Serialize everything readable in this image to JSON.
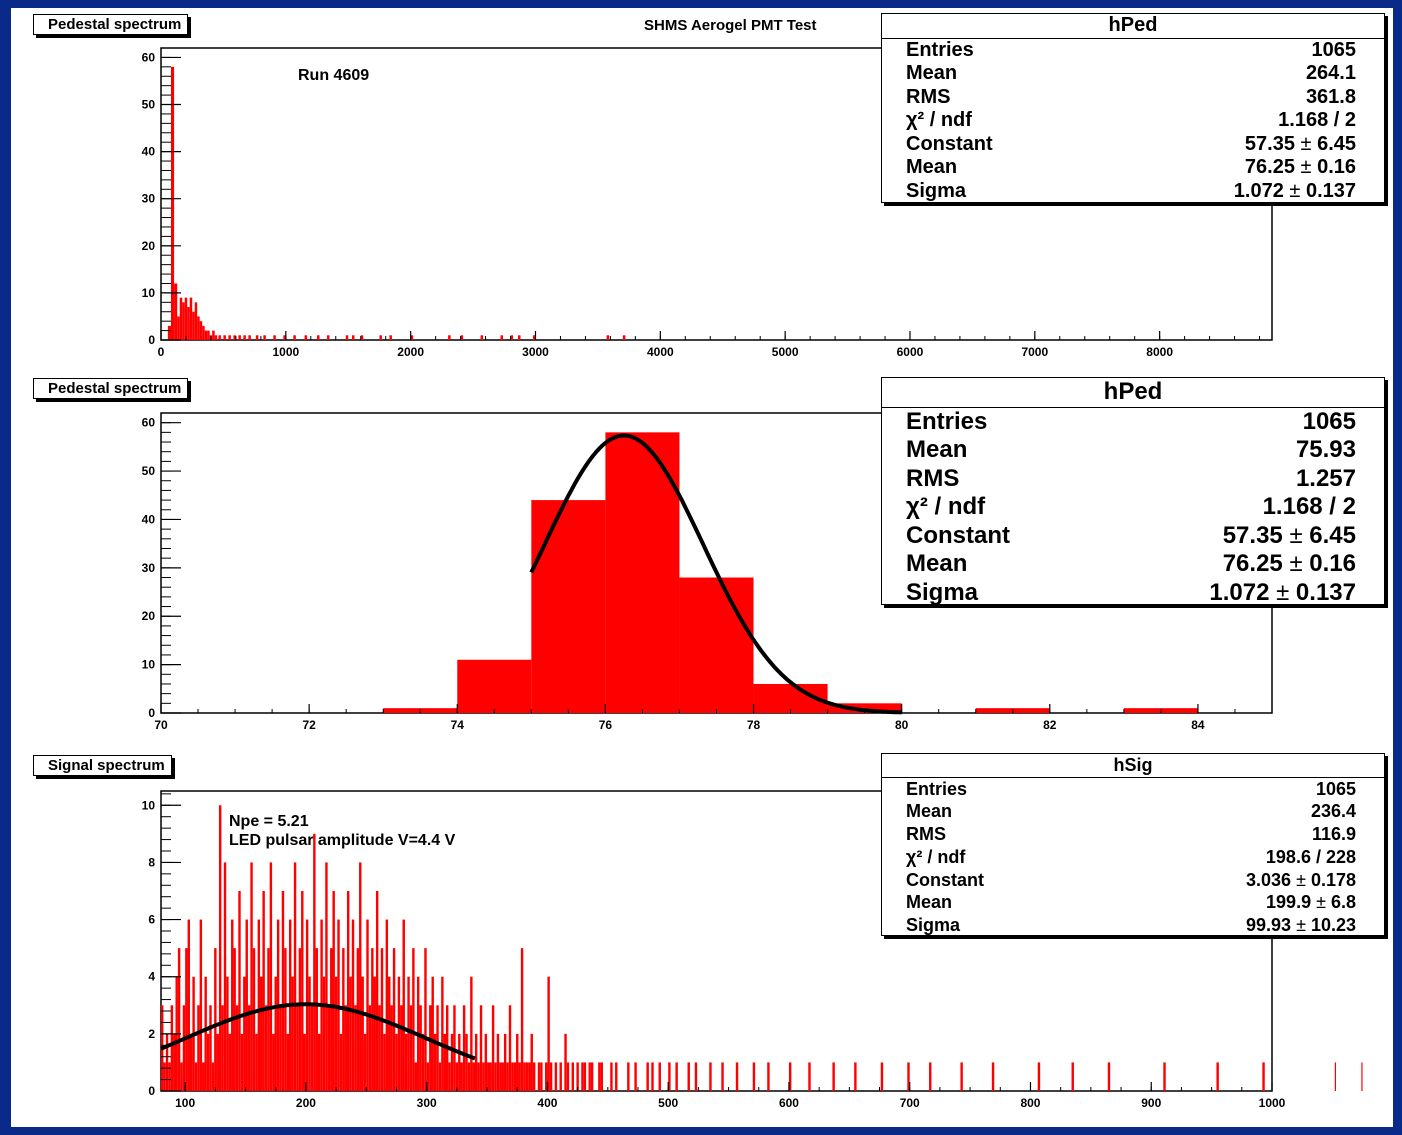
{
  "canvas": {
    "title": "SHMS Aerogel PMT Test"
  },
  "colors": {
    "background": "#0a2a8a",
    "histogram": "#ff0000",
    "fit": "#000000",
    "pad": "#ffffff"
  },
  "chart_data": [
    {
      "type": "bar",
      "name": "hPed",
      "title": "Pedestal spectrum",
      "annotation": "Run  4609",
      "xlim": [
        0,
        8900
      ],
      "ylim": [
        0,
        62
      ],
      "xticks": [
        0,
        1000,
        2000,
        3000,
        4000,
        5000,
        6000,
        7000,
        8000
      ],
      "yticks": [
        0,
        10,
        20,
        30,
        40,
        50,
        60
      ],
      "bins": [
        {
          "x": 55,
          "w": 25,
          "y": 3
        },
        {
          "x": 80,
          "w": 25,
          "y": 58
        },
        {
          "x": 105,
          "w": 25,
          "y": 12
        },
        {
          "x": 130,
          "w": 20,
          "y": 5
        },
        {
          "x": 150,
          "w": 20,
          "y": 9
        },
        {
          "x": 170,
          "w": 20,
          "y": 8
        },
        {
          "x": 190,
          "w": 20,
          "y": 9
        },
        {
          "x": 210,
          "w": 20,
          "y": 7
        },
        {
          "x": 230,
          "w": 20,
          "y": 9
        },
        {
          "x": 250,
          "w": 20,
          "y": 6
        },
        {
          "x": 270,
          "w": 20,
          "y": 8
        },
        {
          "x": 290,
          "w": 20,
          "y": 5
        },
        {
          "x": 310,
          "w": 20,
          "y": 4
        },
        {
          "x": 330,
          "w": 20,
          "y": 3
        },
        {
          "x": 350,
          "w": 20,
          "y": 2
        },
        {
          "x": 370,
          "w": 20,
          "y": 2
        },
        {
          "x": 390,
          "w": 20,
          "y": 1
        },
        {
          "x": 410,
          "w": 20,
          "y": 2
        },
        {
          "x": 430,
          "w": 20,
          "y": 1
        },
        {
          "x": 460,
          "w": 20,
          "y": 1
        },
        {
          "x": 500,
          "w": 20,
          "y": 1
        },
        {
          "x": 540,
          "w": 20,
          "y": 1
        },
        {
          "x": 580,
          "w": 20,
          "y": 1
        },
        {
          "x": 620,
          "w": 20,
          "y": 1
        },
        {
          "x": 660,
          "w": 20,
          "y": 1
        },
        {
          "x": 700,
          "w": 20,
          "y": 1
        },
        {
          "x": 760,
          "w": 20,
          "y": 1
        },
        {
          "x": 820,
          "w": 20,
          "y": 1
        },
        {
          "x": 900,
          "w": 20,
          "y": 1
        },
        {
          "x": 980,
          "w": 20,
          "y": 1
        },
        {
          "x": 1060,
          "w": 20,
          "y": 1
        },
        {
          "x": 1150,
          "w": 20,
          "y": 1
        },
        {
          "x": 1250,
          "w": 20,
          "y": 1
        },
        {
          "x": 1330,
          "w": 20,
          "y": 1
        },
        {
          "x": 1480,
          "w": 20,
          "y": 1
        },
        {
          "x": 1530,
          "w": 20,
          "y": 1
        },
        {
          "x": 1600,
          "w": 20,
          "y": 1
        },
        {
          "x": 1750,
          "w": 20,
          "y": 1
        },
        {
          "x": 1830,
          "w": 20,
          "y": 1
        },
        {
          "x": 2000,
          "w": 20,
          "y": 1
        },
        {
          "x": 2300,
          "w": 20,
          "y": 1
        },
        {
          "x": 2400,
          "w": 20,
          "y": 1
        },
        {
          "x": 2560,
          "w": 20,
          "y": 1
        },
        {
          "x": 2720,
          "w": 20,
          "y": 1
        },
        {
          "x": 2800,
          "w": 20,
          "y": 1
        },
        {
          "x": 2860,
          "w": 20,
          "y": 1
        },
        {
          "x": 2980,
          "w": 20,
          "y": 1
        },
        {
          "x": 3570,
          "w": 20,
          "y": 1
        },
        {
          "x": 3700,
          "w": 20,
          "y": 1
        }
      ],
      "stats": {
        "name": "hPed",
        "rows": [
          {
            "label": "Entries",
            "value": "1065"
          },
          {
            "label": "Mean",
            "value": "264.1"
          },
          {
            "label": "RMS",
            "value": "361.8"
          },
          {
            "label": "χ² / ndf",
            "value": "1.168 / 2"
          },
          {
            "label": "Constant",
            "value": "57.35",
            "err": "6.45"
          },
          {
            "label": "Mean",
            "value": "76.25",
            "err": "0.16"
          },
          {
            "label": "Sigma",
            "value": "1.072",
            "err": "0.137"
          }
        ]
      }
    },
    {
      "type": "bar",
      "name": "hPed",
      "title": "Pedestal spectrum",
      "xlim": [
        70,
        85
      ],
      "ylim": [
        0,
        62
      ],
      "xticks": [
        70,
        72,
        74,
        76,
        78,
        80,
        82,
        84
      ],
      "yticks": [
        0,
        10,
        20,
        30,
        40,
        50,
        60
      ],
      "bins": [
        {
          "x": 73,
          "w": 1,
          "y": 1
        },
        {
          "x": 74,
          "w": 1,
          "y": 11
        },
        {
          "x": 75,
          "w": 1,
          "y": 44
        },
        {
          "x": 76,
          "w": 1,
          "y": 58
        },
        {
          "x": 77,
          "w": 1,
          "y": 28
        },
        {
          "x": 78,
          "w": 1,
          "y": 6
        },
        {
          "x": 79,
          "w": 1,
          "y": 2
        },
        {
          "x": 81,
          "w": 1,
          "y": 1
        },
        {
          "x": 83,
          "w": 1,
          "y": 1
        }
      ],
      "fit": {
        "type": "gaus",
        "constant": 57.35,
        "mean": 76.25,
        "sigma": 1.072,
        "range": [
          75,
          80
        ]
      },
      "stats": {
        "name": "hPed",
        "rows": [
          {
            "label": "Entries",
            "value": "1065"
          },
          {
            "label": "Mean",
            "value": "75.93"
          },
          {
            "label": "RMS",
            "value": "1.257"
          },
          {
            "label": "χ² / ndf",
            "value": "1.168 / 2"
          },
          {
            "label": "Constant",
            "value": "57.35",
            "err": "6.45"
          },
          {
            "label": "Mean",
            "value": "76.25",
            "err": "0.16"
          },
          {
            "label": "Sigma",
            "value": "1.072",
            "err": "0.137"
          }
        ]
      }
    },
    {
      "type": "bar",
      "name": "hSig",
      "title": "Signal spectrum",
      "annotation_lines": [
        "Npe = 5.21",
        "LED pulsar amplitude V=4.4 V"
      ],
      "xlim": [
        80,
        1000
      ],
      "ylim": [
        0,
        10.5
      ],
      "xticks": [
        100,
        200,
        300,
        400,
        500,
        600,
        700,
        800,
        900,
        1000
      ],
      "yticks": [
        0,
        2,
        4,
        6,
        8,
        10
      ],
      "bin_start": 80,
      "bin_width": 2,
      "counts": [
        3,
        1,
        2,
        1,
        3,
        2,
        4,
        5,
        1,
        3,
        5,
        6,
        2,
        4,
        1,
        3,
        6,
        1,
        4,
        2,
        3,
        1,
        5,
        2,
        10,
        3,
        8,
        4,
        2,
        6,
        5,
        3,
        7,
        2,
        4,
        6,
        3,
        8,
        5,
        2,
        6,
        4,
        7,
        3,
        5,
        8,
        2,
        4,
        6,
        3,
        7,
        5,
        2,
        6,
        4,
        8,
        3,
        5,
        7,
        2,
        6,
        4,
        3,
        9,
        5,
        2,
        6,
        4,
        8,
        3,
        5,
        7,
        4,
        6,
        2,
        5,
        3,
        7,
        4,
        6,
        3,
        5,
        8,
        4,
        2,
        6,
        3,
        5,
        4,
        7,
        3,
        5,
        2,
        6,
        4,
        3,
        5,
        2,
        4,
        3,
        6,
        2,
        4,
        3,
        5,
        1,
        4,
        3,
        2,
        5,
        1,
        3,
        4,
        2,
        3,
        1,
        4,
        2,
        3,
        1,
        2,
        3,
        1,
        2,
        1,
        3,
        2,
        1,
        4,
        1,
        2,
        1,
        3,
        1,
        2,
        1,
        1,
        3,
        1,
        2,
        1,
        1,
        2,
        1,
        3,
        1,
        1,
        2,
        1,
        5,
        1,
        1,
        1,
        2,
        1,
        0,
        1,
        1,
        0,
        1,
        4,
        1,
        0,
        1,
        0,
        1,
        0,
        2,
        1,
        0,
        1,
        0,
        1,
        0,
        1,
        1,
        0,
        1,
        1,
        0,
        0,
        1,
        1,
        0,
        0,
        0,
        1,
        0,
        1,
        0,
        0,
        0,
        0,
        1,
        0,
        0,
        1,
        0,
        0,
        0,
        0,
        1,
        0,
        1,
        0,
        0,
        1,
        0,
        0,
        0,
        1,
        0,
        0,
        1,
        0,
        0,
        0,
        0,
        1,
        0,
        0,
        1,
        0,
        0,
        0,
        0,
        0,
        1,
        0,
        0,
        0,
        0,
        1,
        0,
        0,
        0,
        0,
        0,
        1,
        0,
        0,
        0,
        0,
        0,
        0,
        1,
        0,
        0,
        0,
        0,
        0,
        1,
        0,
        0,
        0,
        0,
        0,
        0,
        0,
        0,
        1,
        0,
        0,
        0,
        0,
        0,
        0,
        0,
        1,
        0,
        0,
        0,
        0,
        0,
        0,
        0,
        0,
        0,
        1,
        0,
        0,
        0,
        0,
        0,
        0,
        0,
        0,
        1,
        0,
        0,
        0,
        0,
        0,
        0,
        0,
        0,
        0,
        0,
        1,
        0,
        0,
        0,
        0,
        0,
        0,
        0,
        0,
        0,
        0,
        1,
        0,
        0,
        0,
        0,
        0,
        0,
        0,
        0,
        1,
        0,
        0,
        0,
        0,
        0,
        0,
        0,
        0,
        0,
        0,
        0,
        0,
        1,
        0,
        0,
        0,
        0,
        0,
        0,
        0,
        0,
        0,
        0,
        0,
        0,
        1,
        0,
        0,
        0,
        0,
        0,
        0,
        0,
        0,
        0,
        0,
        0,
        0,
        0,
        0,
        0,
        0,
        0,
        0,
        1,
        0,
        0,
        0,
        0,
        0,
        0,
        0,
        0,
        0,
        0,
        0,
        0,
        0,
        1,
        0,
        0,
        0,
        0,
        0,
        0,
        0,
        0,
        0,
        0,
        0,
        0,
        0,
        0,
        1,
        0,
        0,
        0,
        0,
        0,
        0,
        0,
        0,
        0,
        0,
        0,
        0,
        0,
        0,
        0,
        0,
        0,
        0,
        0,
        0,
        0,
        0,
        1,
        0,
        0,
        0,
        0,
        0,
        0,
        0,
        0,
        0,
        0,
        0,
        0,
        0,
        0,
        0,
        0,
        0,
        0,
        0,
        0,
        0,
        1,
        0,
        0,
        0,
        0,
        0,
        0,
        0,
        0,
        0,
        0,
        0,
        0,
        0,
        0,
        0,
        0,
        0,
        0,
        1,
        0,
        0,
        0,
        0,
        0,
        0,
        0,
        0,
        0,
        0,
        0,
        0,
        0,
        0,
        0,
        0,
        0,
        0,
        0,
        0,
        0,
        0,
        0,
        0,
        0,
        0,
        0,
        0,
        0,
        1,
        0,
        0,
        0,
        0,
        0,
        0,
        0,
        0,
        0,
        0,
        1
      ],
      "fit": {
        "type": "gaus",
        "constant": 3.036,
        "mean": 199.9,
        "sigma": 99.93,
        "range": [
          80,
          340
        ]
      },
      "stats": {
        "name": "hSig",
        "rows": [
          {
            "label": "Entries",
            "value": "1065"
          },
          {
            "label": "Mean",
            "value": "236.4"
          },
          {
            "label": "RMS",
            "value": "116.9"
          },
          {
            "label": "χ² / ndf",
            "value": "198.6 / 228"
          },
          {
            "label": "Constant",
            "value": "3.036",
            "err": "0.178"
          },
          {
            "label": "Mean",
            "value": "199.9",
            "err": "6.8"
          },
          {
            "label": "Sigma",
            "value": "99.93",
            "err": "10.23"
          }
        ]
      }
    }
  ]
}
